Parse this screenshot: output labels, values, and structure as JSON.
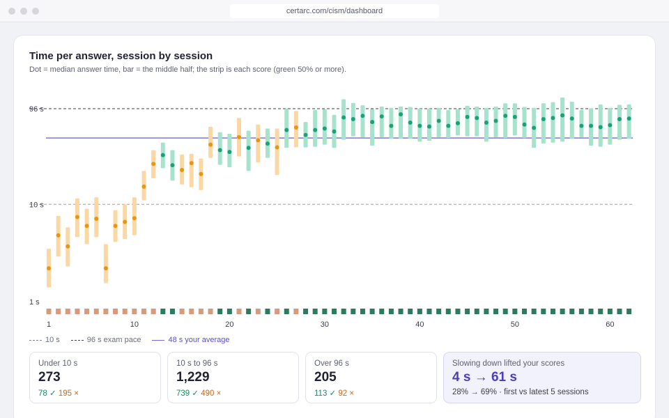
{
  "browser": {
    "url": "certarc.com/cism/dashboard"
  },
  "card": {
    "title": "Time per answer, session by session",
    "subtitle": "Dot = median answer time, bar = the middle half; the strip is each score (green 50% or more)."
  },
  "chart_data": {
    "type": "range-dot",
    "title": "Time per answer, session by session",
    "scale": "log",
    "y_ticks": [
      {
        "value": 96,
        "label": "96 s"
      },
      {
        "value": 10,
        "label": "10 s"
      },
      {
        "value": 1,
        "label": "1 s"
      }
    ],
    "x_ticks": [
      1,
      10,
      20,
      30,
      40,
      50,
      60
    ],
    "reference_lines": [
      {
        "name": "10 s",
        "value": 10,
        "style": "dashed",
        "color": "#9a9da8"
      },
      {
        "name": "96 s exam pace",
        "value": 96,
        "style": "dashed",
        "color": "#3b3e48"
      },
      {
        "name": "48 s your average",
        "value": 48,
        "style": "solid",
        "color": "#7468dc"
      }
    ],
    "colors": {
      "pass": "#1aa276",
      "pass_bar": "#a6e2cc",
      "fail": "#e8960f",
      "fail_bar": "#fad8a5",
      "strip_pass": "#2d7a5c",
      "strip_fail": "#d79a7d"
    },
    "sessions": [
      {
        "x": 1,
        "median": 2.2,
        "q1": 1.4,
        "q3": 3.5,
        "pass": false
      },
      {
        "x": 2,
        "median": 4.8,
        "q1": 2.9,
        "q3": 7.6,
        "pass": false
      },
      {
        "x": 3,
        "median": 3.7,
        "q1": 2.3,
        "q3": 5.8,
        "pass": false
      },
      {
        "x": 4,
        "median": 7.4,
        "q1": 4.6,
        "q3": 11.5,
        "pass": false
      },
      {
        "x": 5,
        "median": 6.0,
        "q1": 3.9,
        "q3": 9.0,
        "pass": false
      },
      {
        "x": 6,
        "median": 7.1,
        "q1": 4.6,
        "q3": 11.8,
        "pass": false
      },
      {
        "x": 7,
        "median": 2.2,
        "q1": 1.55,
        "q3": 3.9,
        "pass": false
      },
      {
        "x": 8,
        "median": 6.0,
        "q1": 4.1,
        "q3": 8.7,
        "pass": false
      },
      {
        "x": 9,
        "median": 6.6,
        "q1": 4.4,
        "q3": 10.0,
        "pass": false
      },
      {
        "x": 10,
        "median": 7.2,
        "q1": 4.8,
        "q3": 11.8,
        "pass": false
      },
      {
        "x": 11,
        "median": 15.2,
        "q1": 11.0,
        "q3": 22.0,
        "pass": false
      },
      {
        "x": 12,
        "median": 26.0,
        "q1": 18.5,
        "q3": 36.0,
        "pass": false
      },
      {
        "x": 13,
        "median": 32.0,
        "q1": 23.5,
        "q3": 43.0,
        "pass": true
      },
      {
        "x": 14,
        "median": 25.2,
        "q1": 17.5,
        "q3": 36.0,
        "pass": true
      },
      {
        "x": 15,
        "median": 22.5,
        "q1": 16.0,
        "q3": 32.5,
        "pass": false
      },
      {
        "x": 16,
        "median": 26.5,
        "q1": 15.0,
        "q3": 33.0,
        "pass": false
      },
      {
        "x": 17,
        "median": 20.5,
        "q1": 14.0,
        "q3": 29.5,
        "pass": false
      },
      {
        "x": 18,
        "median": 41.0,
        "q1": 30.0,
        "q3": 62.5,
        "pass": false
      },
      {
        "x": 19,
        "median": 36.0,
        "q1": 25.5,
        "q3": 55.0,
        "pass": true
      },
      {
        "x": 20,
        "median": 34.5,
        "q1": 24.0,
        "q3": 53.0,
        "pass": true
      },
      {
        "x": 21,
        "median": 49.0,
        "q1": 31.0,
        "q3": 77.0,
        "pass": false
      },
      {
        "x": 22,
        "median": 38.0,
        "q1": 22.0,
        "q3": 57.0,
        "pass": true
      },
      {
        "x": 23,
        "median": 45.5,
        "q1": 27.0,
        "q3": 66.0,
        "pass": false
      },
      {
        "x": 24,
        "median": 42.0,
        "q1": 30.0,
        "q3": 60.0,
        "pass": true
      },
      {
        "x": 25,
        "median": 38.5,
        "q1": 20.0,
        "q3": 60.0,
        "pass": false
      },
      {
        "x": 26,
        "median": 58.0,
        "q1": 38.0,
        "q3": 96.0,
        "pass": true
      },
      {
        "x": 27,
        "median": 61.5,
        "q1": 38.5,
        "q3": 91.0,
        "pass": false
      },
      {
        "x": 28,
        "median": 51.5,
        "q1": 38.5,
        "q3": 70.0,
        "pass": true
      },
      {
        "x": 29,
        "median": 58.0,
        "q1": 39.0,
        "q3": 93.0,
        "pass": true
      },
      {
        "x": 30,
        "median": 60.0,
        "q1": 41.0,
        "q3": 95.0,
        "pass": true
      },
      {
        "x": 31,
        "median": 56.0,
        "q1": 38.0,
        "q3": 83.0,
        "pass": true
      },
      {
        "x": 32,
        "median": 78.0,
        "q1": 46.0,
        "q3": 120.0,
        "pass": true
      },
      {
        "x": 33,
        "median": 75.0,
        "q1": 50.0,
        "q3": 110.0,
        "pass": true
      },
      {
        "x": 34,
        "median": 81.0,
        "q1": 49.0,
        "q3": 104.0,
        "pass": true
      },
      {
        "x": 35,
        "median": 70.0,
        "q1": 40.0,
        "q3": 95.0,
        "pass": true
      },
      {
        "x": 36,
        "median": 80.0,
        "q1": 49.0,
        "q3": 101.0,
        "pass": true
      },
      {
        "x": 37,
        "median": 64.0,
        "q1": 47.0,
        "q3": 98.0,
        "pass": true
      },
      {
        "x": 38,
        "median": 84.0,
        "q1": 47.0,
        "q3": 101.0,
        "pass": true
      },
      {
        "x": 39,
        "median": 69.0,
        "q1": 47.0,
        "q3": 100.0,
        "pass": true
      },
      {
        "x": 40,
        "median": 64.0,
        "q1": 44.0,
        "q3": 96.0,
        "pass": true
      },
      {
        "x": 41,
        "median": 63.0,
        "q1": 45.0,
        "q3": 96.0,
        "pass": true
      },
      {
        "x": 42,
        "median": 72.0,
        "q1": 49.0,
        "q3": 98.0,
        "pass": true
      },
      {
        "x": 43,
        "median": 64.0,
        "q1": 48.0,
        "q3": 93.0,
        "pass": true
      },
      {
        "x": 44,
        "median": 68.0,
        "q1": 51.0,
        "q3": 95.0,
        "pass": true
      },
      {
        "x": 45,
        "median": 79.0,
        "q1": 50.0,
        "q3": 103.0,
        "pass": true
      },
      {
        "x": 46,
        "median": 77.0,
        "q1": 50.0,
        "q3": 101.0,
        "pass": true
      },
      {
        "x": 47,
        "median": 69.0,
        "q1": 44.0,
        "q3": 98.0,
        "pass": true
      },
      {
        "x": 48,
        "median": 72.0,
        "q1": 49.0,
        "q3": 101.0,
        "pass": true
      },
      {
        "x": 49,
        "median": 81.0,
        "q1": 48.0,
        "q3": 109.0,
        "pass": true
      },
      {
        "x": 50,
        "median": 79.0,
        "q1": 51.0,
        "q3": 109.0,
        "pass": true
      },
      {
        "x": 51,
        "median": 66.0,
        "q1": 48.0,
        "q3": 100.0,
        "pass": true
      },
      {
        "x": 52,
        "median": 61.0,
        "q1": 38.0,
        "q3": 98.0,
        "pass": true
      },
      {
        "x": 53,
        "median": 75.0,
        "q1": 42.0,
        "q3": 109.0,
        "pass": true
      },
      {
        "x": 54,
        "median": 77.0,
        "q1": 43.0,
        "q3": 112.0,
        "pass": true
      },
      {
        "x": 55,
        "median": 82.0,
        "q1": 44.0,
        "q3": 125.0,
        "pass": true
      },
      {
        "x": 56,
        "median": 76.0,
        "q1": 47.0,
        "q3": 113.0,
        "pass": true
      },
      {
        "x": 57,
        "median": 64.0,
        "q1": 49.0,
        "q3": 93.0,
        "pass": true
      },
      {
        "x": 58,
        "median": 64.0,
        "q1": 40.0,
        "q3": 97.0,
        "pass": true
      },
      {
        "x": 59,
        "median": 62.0,
        "q1": 39.0,
        "q3": 106.0,
        "pass": true
      },
      {
        "x": 60,
        "median": 65.0,
        "q1": 41.0,
        "q3": 98.0,
        "pass": true
      },
      {
        "x": 61,
        "median": 75.0,
        "q1": 46.0,
        "q3": 105.0,
        "pass": true
      },
      {
        "x": 62,
        "median": 76.0,
        "q1": 47.0,
        "q3": 106.0,
        "pass": true
      }
    ]
  },
  "legend": {
    "ten": "10 s",
    "pace": "96 s exam pace",
    "avg": "48 s your average"
  },
  "stats": [
    {
      "label": "Under 10 s",
      "value": "273",
      "ok": "78 ✓",
      "bad": "195 ×"
    },
    {
      "label": "10 s to 96 s",
      "value": "1,229",
      "ok": "739 ✓",
      "bad": "490 ×"
    },
    {
      "label": "Over 96 s",
      "value": "205",
      "ok": "113 ✓",
      "bad": "92 ×"
    }
  ],
  "highlight": {
    "label": "Slowing down lifted your scores",
    "value": "4 s → 61 s",
    "detail": "28% → 69% · first vs latest 5 sessions"
  }
}
